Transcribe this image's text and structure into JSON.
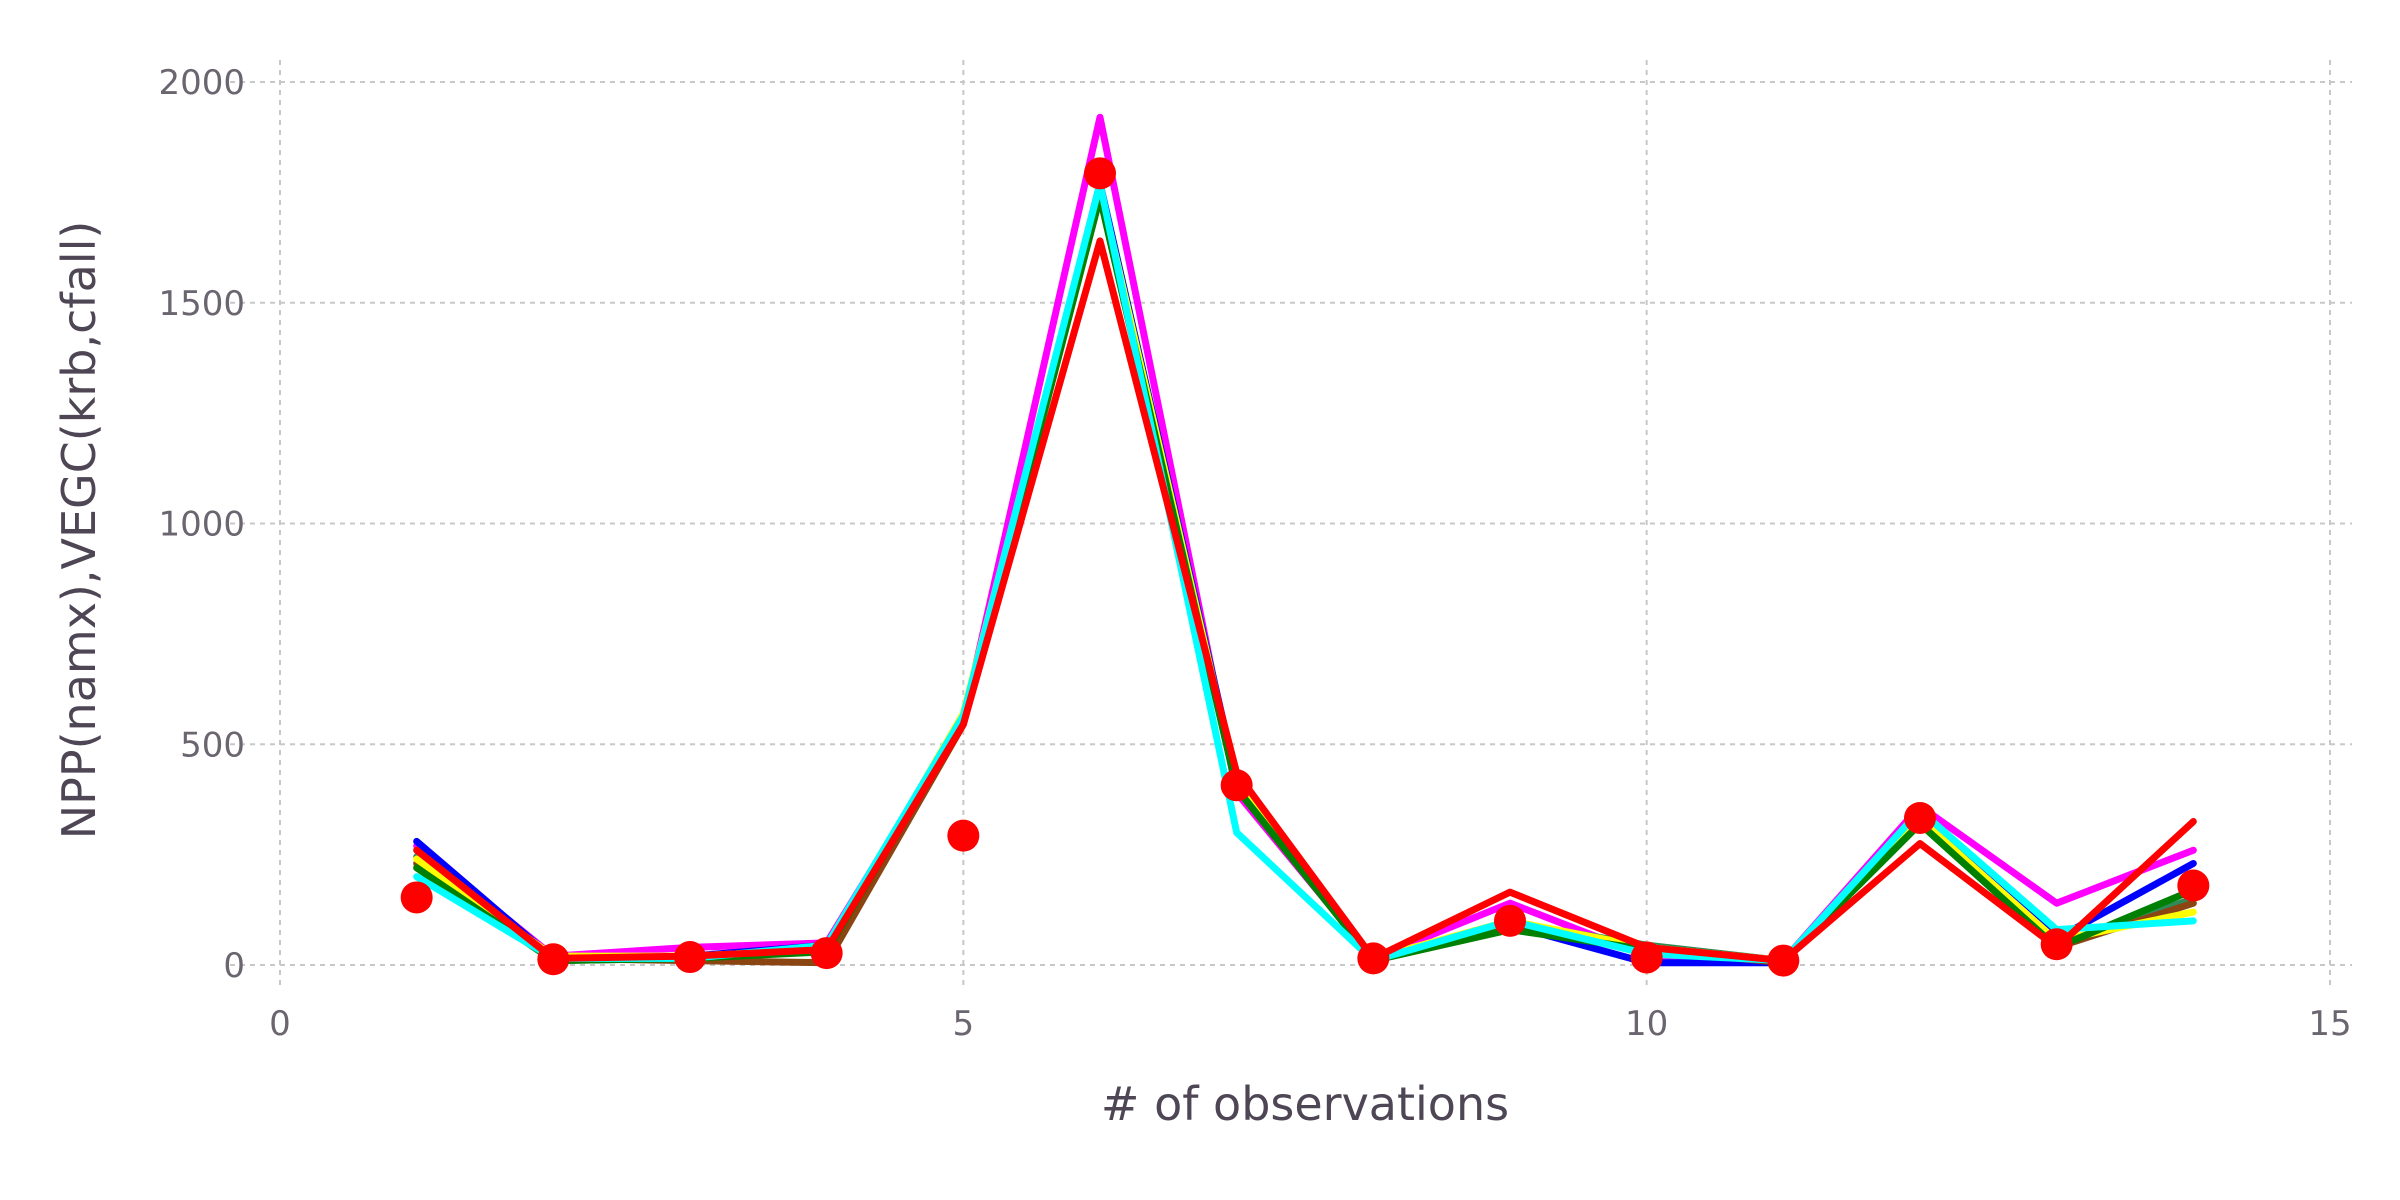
{
  "chart_data": {
    "type": "line",
    "xlabel": "# of observations",
    "ylabel": "NPP(namx),VEGC(krb,cfall)",
    "xlim": [
      0,
      15
    ],
    "ylim": [
      -50,
      2050
    ],
    "xticks": [
      0,
      5,
      10,
      15
    ],
    "yticks": [
      0,
      500,
      1000,
      1500,
      2000
    ],
    "grid": true,
    "x": [
      1,
      2,
      3,
      4,
      5,
      6,
      7,
      8,
      9,
      10,
      11,
      12,
      13,
      14
    ],
    "series": [
      {
        "color": "#ff00ff",
        "values": [
          270,
          20,
          40,
          50,
          555,
          1920,
          390,
          15,
          140,
          20,
          10,
          360,
          140,
          260
        ]
      },
      {
        "color": "#0000ff",
        "values": [
          280,
          15,
          20,
          45,
          550,
          1770,
          420,
          10,
          90,
          5,
          5,
          340,
          60,
          230
        ]
      },
      {
        "color": "#2e8b57",
        "values": [
          245,
          10,
          15,
          40,
          560,
          1760,
          415,
          10,
          95,
          45,
          10,
          335,
          45,
          150
        ]
      },
      {
        "color": "#8b4513",
        "values": [
          230,
          15,
          10,
          5,
          545,
          1740,
          400,
          10,
          85,
          35,
          5,
          330,
          40,
          140
        ]
      },
      {
        "color": "#ffff00",
        "values": [
          240,
          20,
          20,
          35,
          570,
          1760,
          410,
          15,
          100,
          40,
          10,
          330,
          55,
          120
        ]
      },
      {
        "color": "#008000",
        "values": [
          220,
          10,
          15,
          30,
          550,
          1740,
          400,
          10,
          80,
          35,
          10,
          320,
          40,
          170
        ]
      },
      {
        "color": "#00ffff",
        "values": [
          200,
          15,
          15,
          45,
          565,
          1770,
          300,
          10,
          100,
          25,
          10,
          350,
          80,
          100
        ]
      },
      {
        "color": "#ff0000",
        "values": [
          260,
          15,
          20,
          35,
          545,
          1640,
          435,
          15,
          165,
          40,
          10,
          275,
          40,
          325
        ]
      }
    ],
    "observed": {
      "color": "#ff0000",
      "values": [
        153,
        13,
        18,
        27,
        293,
        1793,
        407,
        15,
        100,
        17,
        10,
        333,
        47,
        180
      ]
    }
  }
}
